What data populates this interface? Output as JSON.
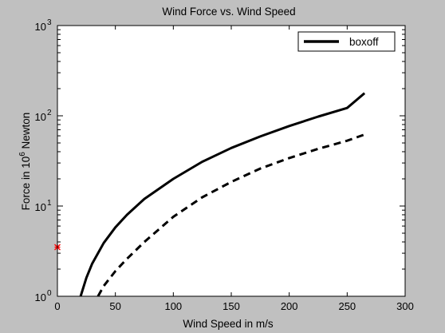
{
  "chart_data": {
    "type": "line",
    "title": "Wind Force vs. Wind Speed",
    "xlabel": "Wind Speed in m/s",
    "ylabel": {
      "prefix": "Force  in 10",
      "superscript": "6",
      "suffix": " Newton"
    },
    "xlim": [
      0,
      300
    ],
    "ylim": [
      1,
      1000
    ],
    "y_scale": "log",
    "x_ticks": [
      0,
      50,
      100,
      150,
      200,
      250,
      300
    ],
    "x_tick_labels": [
      "0",
      "50",
      "100",
      "150",
      "200",
      "250",
      "300"
    ],
    "y_ticks": [
      {
        "value": 1,
        "base": "10",
        "exp": "0"
      },
      {
        "value": 10,
        "base": "10",
        "exp": "1"
      },
      {
        "value": 100,
        "base": "10",
        "exp": "2"
      },
      {
        "value": 1000,
        "base": "10",
        "exp": "3"
      }
    ],
    "grid": false,
    "legend": {
      "placement": "top-right",
      "entries": [
        {
          "label": "boxoff",
          "series_index": 0
        }
      ]
    },
    "series": [
      {
        "style": "solid",
        "color": "#000000",
        "x": [
          20,
          25,
          30,
          40,
          50,
          60,
          75,
          100,
          125,
          150,
          175,
          200,
          225,
          250,
          265
        ],
        "y": [
          1.0,
          1.6,
          2.3,
          3.9,
          5.8,
          8.0,
          12.0,
          20.0,
          31.0,
          44.0,
          59.0,
          77.0,
          98.0,
          122.0,
          178.0
        ]
      },
      {
        "style": "dashed",
        "color": "#000000",
        "x": [
          35,
          40,
          50,
          60,
          75,
          100,
          125,
          150,
          175,
          200,
          225,
          250,
          265
        ],
        "y": [
          1.0,
          1.3,
          1.9,
          2.6,
          4.0,
          7.6,
          12.5,
          18.5,
          26.0,
          34.0,
          43.0,
          53.0,
          62.0
        ]
      }
    ],
    "markers": [
      {
        "x": 0,
        "y": 3.5,
        "symbol": "asterisk",
        "color": "#ff0000"
      }
    ]
  }
}
